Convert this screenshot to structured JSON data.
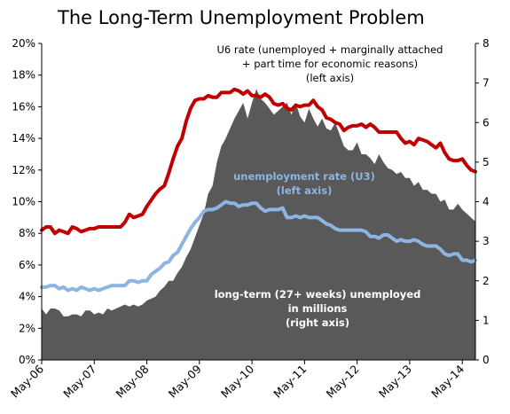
{
  "chart_data": {
    "type": "area",
    "title": "The Long-Term Unemployment Problem",
    "x_tick_labels": [
      "May-06",
      "May-07",
      "May-08",
      "May-09",
      "May-10",
      "May-11",
      "May-12",
      "May-13",
      "May-14"
    ],
    "x_start": "2006-05",
    "ylim_left": [
      0,
      20
    ],
    "y_ticks_left": [
      "0%",
      "2%",
      "4%",
      "6%",
      "8%",
      "10%",
      "12%",
      "14%",
      "16%",
      "18%",
      "20%"
    ],
    "ylim_right": [
      0,
      8
    ],
    "y_ticks_right": [
      "0",
      "1",
      "2",
      "3",
      "4",
      "5",
      "6",
      "7",
      "8"
    ],
    "grid": false,
    "legend": "annotations on chart",
    "annotations": {
      "u6": [
        "U6 rate (unemployed + marginally attached",
        "+ part time for economic reasons)",
        "(left axis)"
      ],
      "u3": [
        "unemployment rate (U3)",
        "(left axis)"
      ],
      "long_term": [
        "long-term (27+ weeks) unemployed",
        "in millions",
        "(right axis)"
      ]
    },
    "colors": {
      "u6": "#c00000",
      "u3": "#8db4e2",
      "long_term": "#595959"
    },
    "series": [
      {
        "id": "u6",
        "axis": "left",
        "kind": "line",
        "values": [
          8.2,
          8.4,
          8.4,
          8.0,
          8.2,
          8.1,
          8.0,
          8.4,
          8.3,
          8.1,
          8.2,
          8.3,
          8.3,
          8.4,
          8.4,
          8.4,
          8.4,
          8.4,
          8.4,
          8.7,
          9.2,
          9.0,
          9.1,
          9.2,
          9.7,
          10.1,
          10.5,
          10.8,
          11.0,
          11.8,
          12.7,
          13.5,
          14.0,
          15.1,
          15.9,
          16.4,
          16.5,
          16.5,
          16.7,
          16.6,
          16.6,
          16.9,
          16.9,
          16.9,
          17.1,
          17.0,
          16.8,
          17.0,
          16.7,
          16.7,
          16.6,
          16.8,
          16.6,
          16.2,
          16.1,
          16.2,
          15.9,
          15.8,
          16.1,
          16.0,
          16.1,
          16.1,
          16.4,
          16.0,
          15.8,
          15.3,
          15.2,
          15.0,
          14.9,
          14.5,
          14.7,
          14.8,
          14.8,
          14.9,
          14.7,
          14.9,
          14.7,
          14.4,
          14.4,
          14.4,
          14.4,
          14.4,
          14.0,
          13.7,
          13.8,
          13.6,
          14.0,
          13.9,
          13.8,
          13.6,
          13.4,
          13.7,
          13.1,
          12.7,
          12.6,
          12.6,
          12.7,
          12.3,
          12.0,
          11.9
        ]
      },
      {
        "id": "u3",
        "axis": "left",
        "kind": "line",
        "values": [
          4.6,
          4.6,
          4.7,
          4.7,
          4.5,
          4.6,
          4.4,
          4.5,
          4.4,
          4.6,
          4.5,
          4.4,
          4.5,
          4.4,
          4.5,
          4.6,
          4.7,
          4.7,
          4.7,
          4.7,
          5.0,
          5.0,
          4.9,
          5.0,
          5.0,
          5.4,
          5.6,
          5.8,
          6.1,
          6.2,
          6.6,
          6.8,
          7.3,
          7.8,
          8.3,
          8.7,
          9.0,
          9.4,
          9.5,
          9.5,
          9.6,
          9.8,
          10.0,
          9.9,
          9.9,
          9.7,
          9.8,
          9.8,
          9.9,
          9.9,
          9.6,
          9.4,
          9.5,
          9.5,
          9.5,
          9.6,
          9.0,
          9.0,
          9.1,
          9.0,
          9.1,
          9.0,
          9.0,
          9.0,
          8.8,
          8.6,
          8.5,
          8.3,
          8.2,
          8.2,
          8.2,
          8.2,
          8.2,
          8.2,
          8.1,
          7.8,
          7.8,
          7.7,
          7.9,
          7.9,
          7.7,
          7.5,
          7.6,
          7.5,
          7.5,
          7.6,
          7.5,
          7.3,
          7.2,
          7.2,
          7.2,
          7.0,
          6.7,
          6.6,
          6.7,
          6.7,
          6.3,
          6.3,
          6.2,
          6.3
        ]
      },
      {
        "id": "long_term",
        "axis": "right",
        "kind": "area",
        "values": [
          1.3,
          1.15,
          1.3,
          1.3,
          1.25,
          1.1,
          1.1,
          1.15,
          1.15,
          1.1,
          1.25,
          1.25,
          1.15,
          1.2,
          1.15,
          1.3,
          1.25,
          1.3,
          1.35,
          1.4,
          1.35,
          1.4,
          1.35,
          1.4,
          1.5,
          1.55,
          1.6,
          1.75,
          1.85,
          2.0,
          2.0,
          2.2,
          2.35,
          2.6,
          2.8,
          3.1,
          3.4,
          3.7,
          4.2,
          4.4,
          5.0,
          5.4,
          5.6,
          5.85,
          6.1,
          6.3,
          6.5,
          6.1,
          6.5,
          6.85,
          6.6,
          6.5,
          6.35,
          6.2,
          6.3,
          6.4,
          6.5,
          6.2,
          6.5,
          6.15,
          6.0,
          6.35,
          6.1,
          5.9,
          6.1,
          5.85,
          5.8,
          6.0,
          5.7,
          5.4,
          5.3,
          5.3,
          5.5,
          5.2,
          5.2,
          5.1,
          4.95,
          5.2,
          5.0,
          4.85,
          4.8,
          4.7,
          4.75,
          4.6,
          4.6,
          4.4,
          4.5,
          4.3,
          4.3,
          4.2,
          4.2,
          4.0,
          4.05,
          3.8,
          3.8,
          3.95,
          3.8,
          3.7,
          3.6,
          3.5
        ]
      }
    ]
  }
}
